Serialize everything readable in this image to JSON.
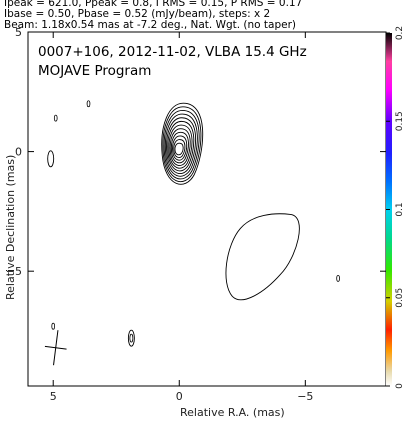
{
  "header": {
    "line1": "Ipeak = 621.0, Ppeak = 0.8, I RMS = 0.15, P RMS = 0.17",
    "line2": "Ibase = 0.50, Pbase = 0.52 (mJy/beam), steps: x 2",
    "line3": "Beam: 1.18x0.54 mas at -7.2 deg., Nat. Wgt. (no taper)"
  },
  "chart_data": {
    "type": "contour",
    "title": "0007+106, 2012-11-02, VLBA 15.4 GHz",
    "subtitle": "MOJAVE Program",
    "xlabel": "Relative R.A. (mas)",
    "ylabel": "Relative Declination (mas)",
    "xlim": [
      6.0,
      -8.2
    ],
    "ylim": [
      -9.8,
      5.0
    ],
    "xticks": [
      5,
      0,
      -5
    ],
    "yticks": [
      5,
      0,
      -5
    ],
    "core": {
      "x": 0.0,
      "y": 0.1,
      "n_contours": 12
    },
    "features": [
      {
        "name": "diffuse-component",
        "x": -2.9,
        "y": -4.3
      },
      {
        "name": "west-blob",
        "x": 5.1,
        "y": -0.3
      },
      {
        "name": "small-blob",
        "x": 1.9,
        "y": -7.8
      }
    ],
    "beam": {
      "major_mas": 1.18,
      "minor_mas": 0.54,
      "pa_deg": -7.2
    },
    "colorbar": {
      "ticks": [
        0,
        0.05,
        0.1,
        0.15,
        0.2
      ],
      "range": [
        0,
        0.2
      ]
    }
  }
}
